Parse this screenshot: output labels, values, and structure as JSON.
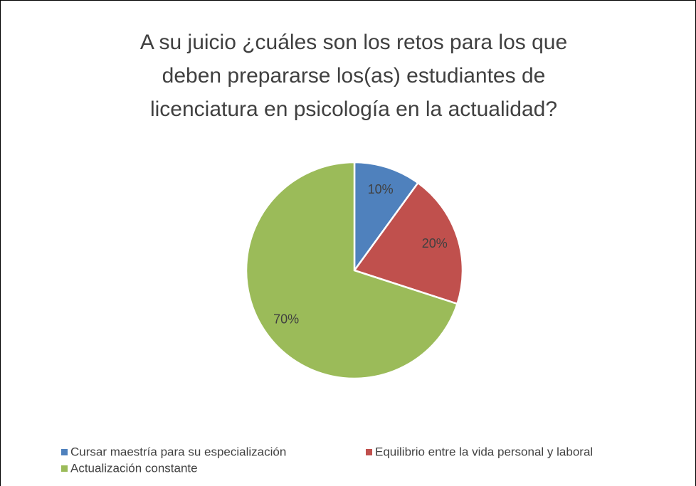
{
  "chart_data": {
    "type": "pie",
    "title": [
      "A su juicio ¿cuáles son los retos para los que",
      "deben prepararse los(as) estudiantes de",
      "licenciatura en psicología en la actualidad?"
    ],
    "categories": [
      "Cursar maestría para su especialización",
      "Equilibrio entre la vida personal y laboral",
      "Actualización constante"
    ],
    "values": [
      10,
      20,
      70
    ],
    "value_labels": [
      "10%",
      "20%",
      "70%"
    ],
    "colors": [
      "#4f81bd",
      "#c0504d",
      "#9bbb59"
    ],
    "legend": "bottom"
  }
}
